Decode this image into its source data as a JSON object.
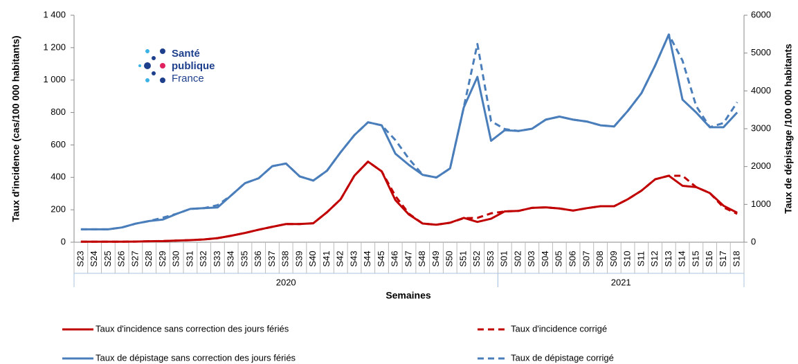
{
  "chart_data": {
    "type": "line",
    "logo": {
      "line1": "Santé",
      "line2": "publique",
      "line3": "France"
    },
    "x_label": "Semaines",
    "y_label": "Taux d'incidence (cas/100 000 habitants)",
    "y2_label": "Taux de dépistage /100 000 habitants",
    "categories": [
      "S23",
      "S24",
      "S25",
      "S26",
      "S27",
      "S28",
      "S29",
      "S30",
      "S31",
      "S32",
      "S33",
      "S34",
      "S35",
      "S36",
      "S37",
      "S38",
      "S39",
      "S40",
      "S41",
      "S42",
      "S43",
      "S44",
      "S45",
      "S46",
      "S47",
      "S48",
      "S49",
      "S50",
      "S51",
      "S52",
      "S53",
      "S01",
      "S02",
      "S03",
      "S04",
      "S05",
      "S06",
      "S07",
      "S08",
      "S09",
      "S10",
      "S11",
      "S12",
      "S13",
      "S14",
      "S15",
      "S16",
      "S17",
      "S18"
    ],
    "groups": [
      "2020",
      "2021"
    ],
    "ylim": [
      0,
      1400
    ],
    "yticks": [
      0,
      200,
      400,
      600,
      800,
      {
        "value": 1000,
        "label": "1 000"
      },
      {
        "value": 1200,
        "label": "1 200"
      },
      {
        "value": 1400,
        "label": "1 400"
      }
    ],
    "y2lim": [
      0,
      6000
    ],
    "y2ticks": [
      0,
      1000,
      2000,
      3000,
      4000,
      5000,
      6000
    ],
    "series": [
      {
        "name": "Taux d'incidence corrigé",
        "color": "#c00000",
        "dashed": true,
        "values": [
          3,
          3,
          3,
          3,
          4,
          6,
          7,
          10,
          13,
          17,
          25,
          40,
          57,
          77,
          95,
          112,
          112,
          117,
          185,
          265,
          410,
          497,
          437,
          285,
          175,
          115,
          108,
          120,
          148,
          150,
          178,
          190,
          193,
          212,
          215,
          208,
          195,
          210,
          222,
          222,
          265,
          318,
          388,
          410,
          410,
          340,
          303,
          215,
          175
        ]
      },
      {
        "name": "Taux de dépistage corrigé",
        "color": "#4a7ebb",
        "dashed": true,
        "axis": "y2",
        "values": [
          340,
          340,
          340,
          390,
          490,
          560,
          650,
          750,
          880,
          900,
          980,
          1240,
          1560,
          1690,
          2010,
          2080,
          1740,
          1630,
          1890,
          2380,
          2830,
          3170,
          3090,
          2700,
          2200,
          1780,
          1710,
          1950,
          3560,
          5240,
          3200,
          2990,
          2940,
          3000,
          3240,
          3320,
          3240,
          3190,
          3090,
          3060,
          3470,
          3940,
          4670,
          5490,
          4800,
          3600,
          3040,
          3150,
          3700
        ]
      },
      {
        "name": "Taux d'incidence sans correction des jours fériés",
        "color": "#c00000",
        "dashed": false,
        "values": [
          3,
          3,
          3,
          3,
          4,
          6,
          7,
          10,
          13,
          17,
          25,
          40,
          57,
          77,
          95,
          112,
          112,
          117,
          185,
          265,
          410,
          497,
          437,
          260,
          170,
          115,
          108,
          120,
          150,
          125,
          145,
          190,
          193,
          212,
          215,
          208,
          195,
          210,
          222,
          222,
          265,
          318,
          388,
          410,
          348,
          340,
          303,
          225,
          182
        ]
      },
      {
        "name": "Taux de dépistage sans correction des jours fériés",
        "color": "#4a7ebb",
        "dashed": false,
        "axis": "y2",
        "values": [
          340,
          340,
          340,
          390,
          490,
          560,
          600,
          750,
          880,
          900,
          920,
          1240,
          1560,
          1690,
          2010,
          2080,
          1740,
          1630,
          1890,
          2380,
          2830,
          3170,
          3090,
          2340,
          2040,
          1780,
          1710,
          1950,
          3560,
          4370,
          2680,
          2960,
          2940,
          3000,
          3240,
          3320,
          3240,
          3190,
          3090,
          3060,
          3470,
          3940,
          4670,
          5490,
          3770,
          3430,
          3040,
          3040,
          3430
        ]
      }
    ]
  }
}
